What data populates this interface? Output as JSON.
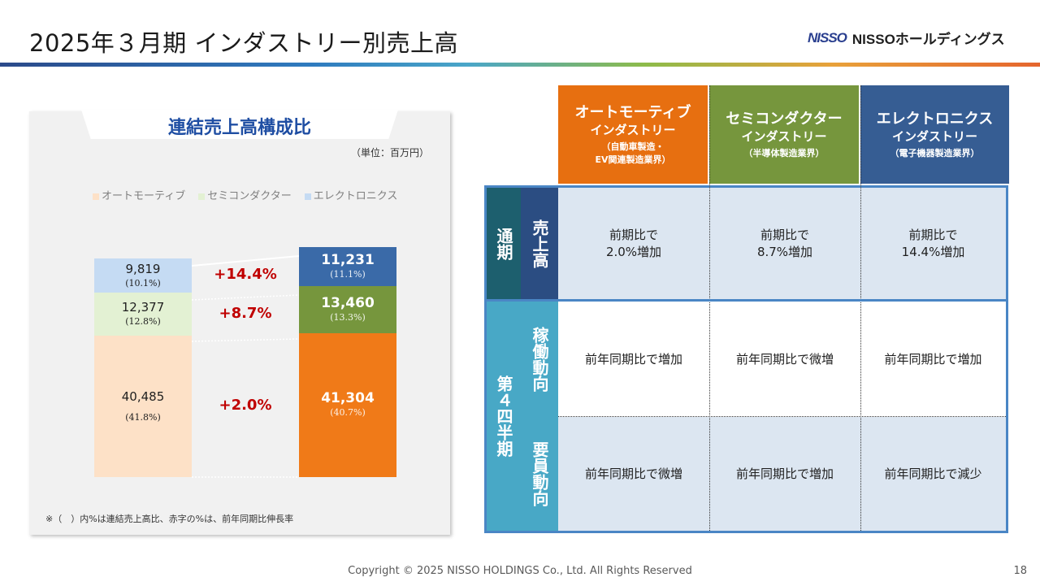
{
  "header": {
    "title": "2025年３月期 インダストリー別売上高",
    "logo_mark": "NISSO",
    "logo_text": "NISSOホールディングス"
  },
  "left_panel": {
    "title": "連結売上高構成比",
    "unit": "（単位：百万円）",
    "note": "※（　）内%は連結売上高比、赤字の%は、前年同期比伸長率"
  },
  "chart_data": {
    "type": "bar",
    "stacked": true,
    "categories": [
      "",
      ""
    ],
    "series": [
      {
        "name": "オートモーティブ",
        "values": [
          40485,
          41304
        ],
        "shares": [
          "(41.8%)",
          "(40.7%)"
        ],
        "labels": [
          "40,485",
          "41,304"
        ],
        "growth": "+2.0%",
        "color_prev": "#fde1c7",
        "color_curr": "#f07a18"
      },
      {
        "name": "セミコンダクター",
        "values": [
          12377,
          13460
        ],
        "shares": [
          "(12.8%)",
          "(13.3%)"
        ],
        "labels": [
          "12,377",
          "13,460"
        ],
        "growth": "+8.7%",
        "color_prev": "#e3f1d3",
        "color_curr": "#76963d"
      },
      {
        "name": "エレクトロニクス",
        "values": [
          9819,
          11231
        ],
        "shares": [
          "(10.1%)",
          "(11.1%)"
        ],
        "labels": [
          "9,819",
          "11,231"
        ],
        "growth": "+14.4%",
        "color_prev": "#c5dbf3",
        "color_curr": "#3a6aa8"
      }
    ],
    "legend_position": "top-left",
    "grid": false
  },
  "table": {
    "columns": [
      {
        "name": "オートモーティブ",
        "sub": "インダストリー",
        "detail1": "（自動車製造・",
        "detail2": "EV関連製造業界）",
        "color": "#e76f10"
      },
      {
        "name": "セミコンダクター",
        "sub": "インダストリー",
        "detail1": "（半導体製造業界）",
        "detail2": "",
        "color": "#76963d"
      },
      {
        "name": "エレクトロニクス",
        "sub": "インダストリー",
        "detail1": "（電子機器製造業界）",
        "detail2": "",
        "color": "#365d93"
      }
    ],
    "group1": "通期",
    "group2": "第４四半期",
    "rows": [
      {
        "label": "売上高",
        "cells": [
          [
            "前期比で",
            "2.0%増加"
          ],
          [
            "前期比で",
            "8.7%増加"
          ],
          [
            "前期比で",
            "14.4%増加"
          ]
        ]
      },
      {
        "label": "稼働動向",
        "cells": [
          [
            "前年同期比で増加"
          ],
          [
            "前年同期比で微増"
          ],
          [
            "前年同期比で増加"
          ]
        ]
      },
      {
        "label": "要員動向",
        "cells": [
          [
            "前年同期比で微増"
          ],
          [
            "前年同期比で増加"
          ],
          [
            "前年同期比で減少"
          ]
        ]
      }
    ]
  },
  "footer": {
    "copyright": "Copyright © 2025 NISSO HOLDINGS Co., Ltd. All Rights Reserved",
    "page": "18"
  }
}
